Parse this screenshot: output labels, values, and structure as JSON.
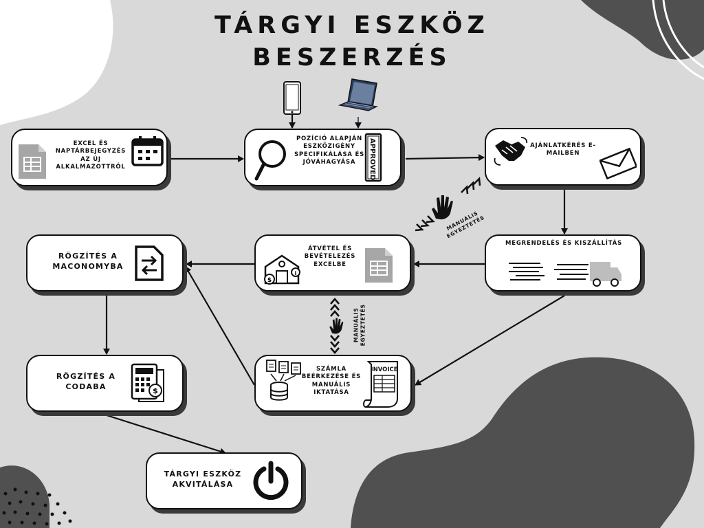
{
  "title": "TÁRGYI ESZKÖZ BESZERZÉS",
  "nodes": {
    "excel": "EXCEL ÉS NAPTÁRBEJEGYZÉS AZ ÚJ ALKALMAZOTTRÓL",
    "spec": "POZÍCIÓ ALAPJÁN ESZKÖZIGÉNY SPECIFIKÁLÁSA ÉS JÓVÁHAGYÁSA",
    "offer": "AJÁNLATKÉRÉS E-MAILBEN",
    "order": "MEGRENDELÉS ÉS KISZÁLLÍTÁS",
    "receipt": "ÁTVÉTEL ÉS BEVÉTELEZÉS EXCELBE",
    "maconomy": "RÖGZÍTÉS A MACONOMYBA",
    "coda": "RÖGZÍTÉS A CODABA",
    "invoice": "SZÁMLA BEÉRKEZÉSE ÉS MANUÁLIS IKTATÁSA",
    "activate": "TÁRGYI ESZKÖZ AKVITÁLÁSA"
  },
  "notes": {
    "sync_top": "MANUÁLIS EGYEZTETÉS",
    "sync_mid": "MANUÁLIS EGYEZTETÉS"
  },
  "icon_text": {
    "stamp": "APPROVED",
    "invoice_doc": "INVOICE"
  },
  "icons": [
    "sheet-icon",
    "calendar-icon",
    "phone-icon",
    "laptop-icon",
    "magnifier-icon",
    "approved-stamp-icon",
    "handshake-icon",
    "envelope-icon",
    "truck-icon",
    "warehouse-icon",
    "swap-document-icon",
    "calculator-icon",
    "invoice-icon",
    "power-icon",
    "hand-icon"
  ],
  "colors": {
    "background": "#d9d9d9",
    "dark_blob": "#505050",
    "box": "#ffffff",
    "ink": "#111111",
    "sheet": "#a6a6a6"
  }
}
